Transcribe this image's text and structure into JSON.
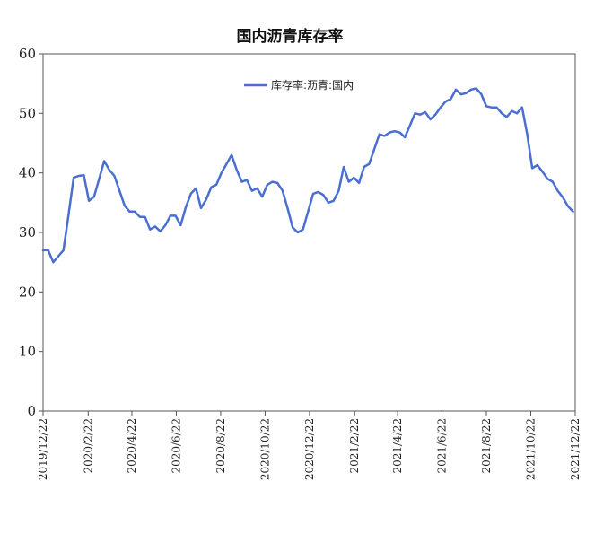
{
  "chart_data": {
    "type": "line",
    "title": "国内沥青库存率",
    "xlabel": "",
    "ylabel": "",
    "ylim": [
      0,
      60
    ],
    "yticks": [
      "0",
      "10",
      "20",
      "30",
      "40",
      "50",
      "60"
    ],
    "xlim": [
      "2019/12/22",
      "2021/12/22"
    ],
    "xticks": [
      "2019/12/22",
      "2020/2/22",
      "2020/4/22",
      "2020/6/22",
      "2020/8/22",
      "2020/10/22",
      "2020/12/22",
      "2021/2/22",
      "2021/4/22",
      "2021/6/22",
      "2021/8/22",
      "2021/10/22",
      "2021/12/22"
    ],
    "grid": false,
    "legend_position": "top-center",
    "series": [
      {
        "name": "库存率:沥青:国内",
        "color": "#4a6fd0",
        "x": [
          "2019/12/22",
          "2019/12/29",
          "2020/1/5",
          "2020/1/12",
          "2020/1/19",
          "2020/1/26",
          "2020/2/2",
          "2020/2/9",
          "2020/2/16",
          "2020/2/23",
          "2020/3/1",
          "2020/3/8",
          "2020/3/15",
          "2020/3/22",
          "2020/3/29",
          "2020/4/5",
          "2020/4/12",
          "2020/4/19",
          "2020/4/26",
          "2020/5/3",
          "2020/5/10",
          "2020/5/17",
          "2020/5/24",
          "2020/5/31",
          "2020/6/7",
          "2020/6/14",
          "2020/6/21",
          "2020/6/28",
          "2020/7/5",
          "2020/7/12",
          "2020/7/19",
          "2020/7/26",
          "2020/8/2",
          "2020/8/9",
          "2020/8/16",
          "2020/8/23",
          "2020/8/30",
          "2020/9/6",
          "2020/9/13",
          "2020/9/20",
          "2020/9/27",
          "2020/10/4",
          "2020/10/11",
          "2020/10/18",
          "2020/10/25",
          "2020/11/1",
          "2020/11/8",
          "2020/11/15",
          "2020/11/22",
          "2020/11/29",
          "2020/12/6",
          "2020/12/13",
          "2020/12/20",
          "2020/12/27",
          "2021/1/3",
          "2021/1/10",
          "2021/1/17",
          "2021/1/24",
          "2021/1/31",
          "2021/2/7",
          "2021/2/14",
          "2021/2/21",
          "2021/2/28",
          "2021/3/7",
          "2021/3/14",
          "2021/3/21",
          "2021/3/28",
          "2021/4/4",
          "2021/4/11",
          "2021/4/18",
          "2021/4/25",
          "2021/5/2",
          "2021/5/9",
          "2021/5/16",
          "2021/5/23",
          "2021/5/30",
          "2021/6/6",
          "2021/6/13",
          "2021/6/20",
          "2021/6/27",
          "2021/7/4",
          "2021/7/11",
          "2021/7/18",
          "2021/7/25",
          "2021/8/1",
          "2021/8/8",
          "2021/8/15",
          "2021/8/22",
          "2021/8/29",
          "2021/9/5",
          "2021/9/12",
          "2021/9/19",
          "2021/9/26",
          "2021/10/3",
          "2021/10/10",
          "2021/10/17",
          "2021/10/24",
          "2021/10/31",
          "2021/11/7",
          "2021/11/14",
          "2021/11/21",
          "2021/11/28",
          "2021/12/5",
          "2021/12/12",
          "2021/12/19"
        ],
        "values": [
          27,
          27,
          25,
          26,
          27,
          33,
          39.2,
          39.5,
          39.6,
          35.3,
          36,
          39,
          42,
          40.5,
          39.5,
          37,
          34.5,
          33.5,
          33.5,
          32.6,
          32.6,
          30.5,
          31,
          30.2,
          31.2,
          32.8,
          32.8,
          31.2,
          34.2,
          36.5,
          37.4,
          34.1,
          35.5,
          37.6,
          38,
          40,
          41.5,
          43,
          40.5,
          38.5,
          38.8,
          37,
          37.4,
          36,
          38,
          38.5,
          38.3,
          37,
          34,
          30.8,
          30,
          30.5,
          33.5,
          36.5,
          36.8,
          36.3,
          35,
          35.3,
          37,
          41,
          38.5,
          39.2,
          38.3,
          41,
          41.5,
          44,
          46.5,
          46.2,
          46.8,
          47,
          46.8,
          46,
          48,
          50,
          49.8,
          50.2,
          49,
          49.8,
          51,
          52,
          52.4,
          54,
          53.2,
          53.4,
          54,
          54.2,
          53.2,
          51.2,
          51,
          51,
          50,
          49.4,
          50.4,
          50,
          51,
          46.5,
          40.8,
          41.3,
          40.2,
          39,
          38.5,
          37,
          35.9,
          34.4,
          33.5
        ]
      }
    ]
  }
}
